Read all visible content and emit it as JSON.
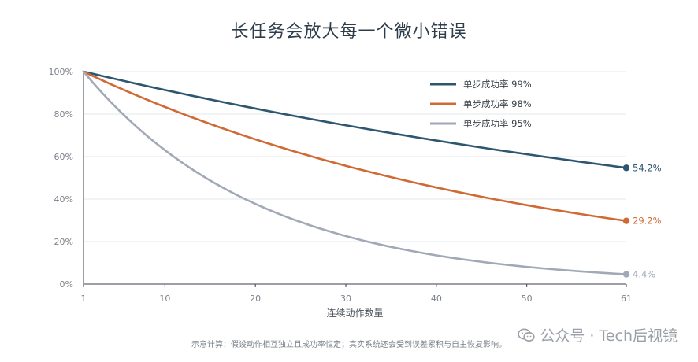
{
  "chart_data": {
    "type": "line",
    "title": "长任务会放大每一个微小错误",
    "xlabel": "连续动作数量",
    "ylabel": "",
    "xlim": [
      1,
      61
    ],
    "ylim": [
      0,
      100
    ],
    "x_ticks": [
      1,
      10,
      20,
      30,
      40,
      50,
      61
    ],
    "y_ticks": [
      0,
      20,
      40,
      60,
      80,
      100
    ],
    "y_tick_suffix": "%",
    "grid": "horizontal",
    "legend_position": "top-right",
    "series": [
      {
        "name": "单步成功率 99%",
        "p": 0.99,
        "color": "#2e5670",
        "end_label": "54.2%"
      },
      {
        "name": "单步成功率 98%",
        "p": 0.98,
        "color": "#d06a34",
        "end_label": "29.2%"
      },
      {
        "name": "单步成功率 95%",
        "p": 0.95,
        "color": "#a2a9b6",
        "end_label": "4.4%"
      }
    ]
  },
  "footnote": "示意计算：假设动作相互独立且成功率恒定；真实系统还会受到误差累积与自主恢复影响。",
  "watermark": {
    "text": "公众号 · Tech后视镜",
    "icon": "wechat-icon"
  }
}
